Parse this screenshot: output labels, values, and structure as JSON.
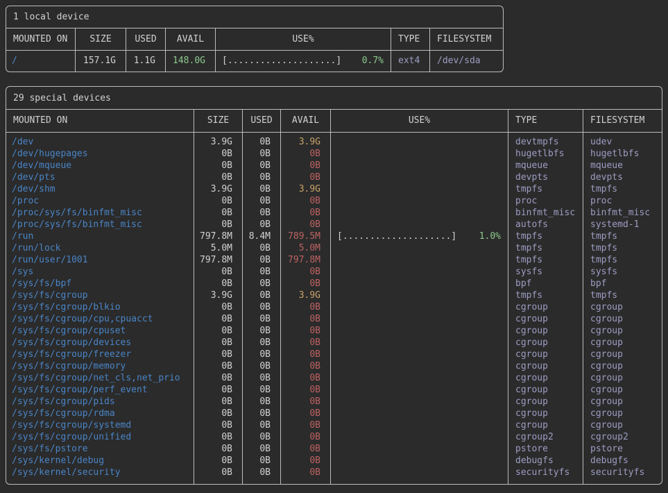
{
  "colors": {
    "background": "#2b2b2b",
    "border": "#bdbdbd",
    "text": "#d2d2d2",
    "mount_blue": "#4a85c7",
    "avail_red": "#bd6262",
    "avail_yellow": "#c9a368",
    "avail_green": "#8cc98c",
    "pct_green": "#8cc98c",
    "type_lavender": "#9d9dc4"
  },
  "local_devices": {
    "title": "1 local device",
    "headers": [
      "MOUNTED ON",
      "SIZE",
      "USED",
      "AVAIL",
      "USE%",
      "TYPE",
      "FILESYSTEM"
    ],
    "row": {
      "mount": "/",
      "size": "157.1G",
      "used": "1.1G",
      "avail": "148.0G",
      "avail_level": "green",
      "bar": "[....................]",
      "pct": "0.7%",
      "type": "ext4",
      "fs": "/dev/sda"
    }
  },
  "special_devices": {
    "title": "29 special devices",
    "headers": [
      "MOUNTED ON",
      "SIZE",
      "USED",
      "AVAIL",
      "USE%",
      "TYPE",
      "FILESYSTEM"
    ],
    "rows": [
      {
        "mount": "/dev",
        "size": "3.9G",
        "used": "0B",
        "avail": "3.9G",
        "avail_level": "yellow",
        "type": "devtmpfs",
        "fs": "udev"
      },
      {
        "mount": "/dev/hugepages",
        "size": "0B",
        "used": "0B",
        "avail": "0B",
        "avail_level": "red",
        "type": "hugetlbfs",
        "fs": "hugetlbfs"
      },
      {
        "mount": "/dev/mqueue",
        "size": "0B",
        "used": "0B",
        "avail": "0B",
        "avail_level": "red",
        "type": "mqueue",
        "fs": "mqueue"
      },
      {
        "mount": "/dev/pts",
        "size": "0B",
        "used": "0B",
        "avail": "0B",
        "avail_level": "red",
        "type": "devpts",
        "fs": "devpts"
      },
      {
        "mount": "/dev/shm",
        "size": "3.9G",
        "used": "0B",
        "avail": "3.9G",
        "avail_level": "yellow",
        "type": "tmpfs",
        "fs": "tmpfs"
      },
      {
        "mount": "/proc",
        "size": "0B",
        "used": "0B",
        "avail": "0B",
        "avail_level": "red",
        "type": "proc",
        "fs": "proc"
      },
      {
        "mount": "/proc/sys/fs/binfmt_misc",
        "size": "0B",
        "used": "0B",
        "avail": "0B",
        "avail_level": "red",
        "type": "binfmt_misc",
        "fs": "binfmt_misc"
      },
      {
        "mount": "/proc/sys/fs/binfmt_misc",
        "size": "0B",
        "used": "0B",
        "avail": "0B",
        "avail_level": "red",
        "type": "autofs",
        "fs": "systemd-1"
      },
      {
        "mount": "/run",
        "size": "797.8M",
        "used": "8.4M",
        "avail": "789.5M",
        "avail_level": "red",
        "bar": "[....................]",
        "pct": "1.0%",
        "type": "tmpfs",
        "fs": "tmpfs"
      },
      {
        "mount": "/run/lock",
        "size": "5.0M",
        "used": "0B",
        "avail": "5.0M",
        "avail_level": "red",
        "type": "tmpfs",
        "fs": "tmpfs"
      },
      {
        "mount": "/run/user/1001",
        "size": "797.8M",
        "used": "0B",
        "avail": "797.8M",
        "avail_level": "red",
        "type": "tmpfs",
        "fs": "tmpfs"
      },
      {
        "mount": "/sys",
        "size": "0B",
        "used": "0B",
        "avail": "0B",
        "avail_level": "red",
        "type": "sysfs",
        "fs": "sysfs"
      },
      {
        "mount": "/sys/fs/bpf",
        "size": "0B",
        "used": "0B",
        "avail": "0B",
        "avail_level": "red",
        "type": "bpf",
        "fs": "bpf"
      },
      {
        "mount": "/sys/fs/cgroup",
        "size": "3.9G",
        "used": "0B",
        "avail": "3.9G",
        "avail_level": "yellow",
        "type": "tmpfs",
        "fs": "tmpfs"
      },
      {
        "mount": "/sys/fs/cgroup/blkio",
        "size": "0B",
        "used": "0B",
        "avail": "0B",
        "avail_level": "red",
        "type": "cgroup",
        "fs": "cgroup"
      },
      {
        "mount": "/sys/fs/cgroup/cpu,cpuacct",
        "size": "0B",
        "used": "0B",
        "avail": "0B",
        "avail_level": "red",
        "type": "cgroup",
        "fs": "cgroup"
      },
      {
        "mount": "/sys/fs/cgroup/cpuset",
        "size": "0B",
        "used": "0B",
        "avail": "0B",
        "avail_level": "red",
        "type": "cgroup",
        "fs": "cgroup"
      },
      {
        "mount": "/sys/fs/cgroup/devices",
        "size": "0B",
        "used": "0B",
        "avail": "0B",
        "avail_level": "red",
        "type": "cgroup",
        "fs": "cgroup"
      },
      {
        "mount": "/sys/fs/cgroup/freezer",
        "size": "0B",
        "used": "0B",
        "avail": "0B",
        "avail_level": "red",
        "type": "cgroup",
        "fs": "cgroup"
      },
      {
        "mount": "/sys/fs/cgroup/memory",
        "size": "0B",
        "used": "0B",
        "avail": "0B",
        "avail_level": "red",
        "type": "cgroup",
        "fs": "cgroup"
      },
      {
        "mount": "/sys/fs/cgroup/net_cls,net_prio",
        "size": "0B",
        "used": "0B",
        "avail": "0B",
        "avail_level": "red",
        "type": "cgroup",
        "fs": "cgroup"
      },
      {
        "mount": "/sys/fs/cgroup/perf_event",
        "size": "0B",
        "used": "0B",
        "avail": "0B",
        "avail_level": "red",
        "type": "cgroup",
        "fs": "cgroup"
      },
      {
        "mount": "/sys/fs/cgroup/pids",
        "size": "0B",
        "used": "0B",
        "avail": "0B",
        "avail_level": "red",
        "type": "cgroup",
        "fs": "cgroup"
      },
      {
        "mount": "/sys/fs/cgroup/rdma",
        "size": "0B",
        "used": "0B",
        "avail": "0B",
        "avail_level": "red",
        "type": "cgroup",
        "fs": "cgroup"
      },
      {
        "mount": "/sys/fs/cgroup/systemd",
        "size": "0B",
        "used": "0B",
        "avail": "0B",
        "avail_level": "red",
        "type": "cgroup",
        "fs": "cgroup"
      },
      {
        "mount": "/sys/fs/cgroup/unified",
        "size": "0B",
        "used": "0B",
        "avail": "0B",
        "avail_level": "red",
        "type": "cgroup2",
        "fs": "cgroup2"
      },
      {
        "mount": "/sys/fs/pstore",
        "size": "0B",
        "used": "0B",
        "avail": "0B",
        "avail_level": "red",
        "type": "pstore",
        "fs": "pstore"
      },
      {
        "mount": "/sys/kernel/debug",
        "size": "0B",
        "used": "0B",
        "avail": "0B",
        "avail_level": "red",
        "type": "debugfs",
        "fs": "debugfs"
      },
      {
        "mount": "/sys/kernel/security",
        "size": "0B",
        "used": "0B",
        "avail": "0B",
        "avail_level": "red",
        "type": "securityfs",
        "fs": "securityfs"
      }
    ]
  }
}
